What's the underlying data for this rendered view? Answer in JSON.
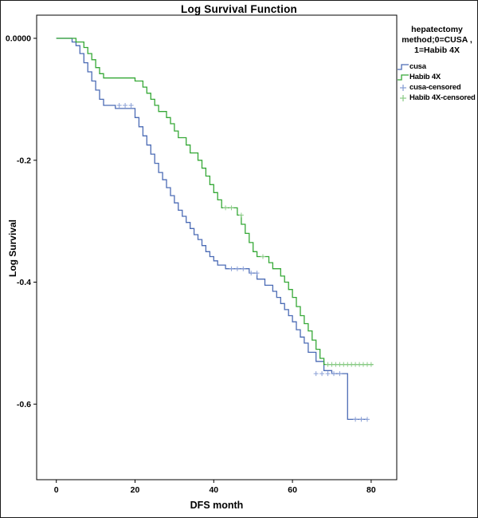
{
  "chart": {
    "title": "Log Survival Function",
    "xlabel": "DFS month",
    "ylabel": "Log Survival"
  },
  "legend": {
    "title_line1": "hepatectomy",
    "title_line2": "method;0=CUSA ,",
    "title_line3": "1=Habib 4X",
    "entries": [
      {
        "label": "cusa",
        "type": "line",
        "color": "#4b6bb5"
      },
      {
        "label": "Habib 4X",
        "type": "line",
        "color": "#35a836"
      },
      {
        "label": "cusa-censored",
        "type": "plus",
        "color": "#8aa0d6"
      },
      {
        "label": "Habib 4X-censored",
        "type": "plus",
        "color": "#8fcd8a"
      }
    ]
  },
  "chart_data": {
    "type": "line",
    "step": true,
    "title": "Log Survival Function",
    "xlabel": "DFS month",
    "ylabel": "Log Survival",
    "xlim": [
      -5,
      86.5
    ],
    "ylim": [
      -0.724,
      0.038
    ],
    "grid": false,
    "legend_position": "right-top-outside",
    "x_ticks": [
      0,
      20,
      40,
      60,
      80
    ],
    "y_ticks": [
      {
        "label": "0.0000",
        "value": 0
      },
      {
        "label": "-0.2",
        "value": -0.2
      },
      {
        "label": "-0.4",
        "value": -0.4
      },
      {
        "label": "-0.6",
        "value": -0.6
      }
    ],
    "series": [
      {
        "name": "cusa",
        "color": "#4b6bb5",
        "points": [
          [
            0,
            0
          ],
          [
            4,
            -0.006
          ],
          [
            5,
            -0.012
          ],
          [
            6,
            -0.025
          ],
          [
            7,
            -0.04
          ],
          [
            8,
            -0.055
          ],
          [
            9,
            -0.07
          ],
          [
            10,
            -0.085
          ],
          [
            11,
            -0.1
          ],
          [
            12,
            -0.11
          ],
          [
            15,
            -0.115
          ],
          [
            20,
            -0.13
          ],
          [
            21,
            -0.145
          ],
          [
            22,
            -0.16
          ],
          [
            23,
            -0.175
          ],
          [
            24,
            -0.19
          ],
          [
            25,
            -0.205
          ],
          [
            26,
            -0.22
          ],
          [
            27,
            -0.232
          ],
          [
            28,
            -0.245
          ],
          [
            29,
            -0.258
          ],
          [
            30,
            -0.27
          ],
          [
            31,
            -0.282
          ],
          [
            32,
            -0.292
          ],
          [
            33,
            -0.302
          ],
          [
            34,
            -0.312
          ],
          [
            35,
            -0.322
          ],
          [
            36,
            -0.33
          ],
          [
            37,
            -0.34
          ],
          [
            38,
            -0.35
          ],
          [
            39,
            -0.358
          ],
          [
            40,
            -0.365
          ],
          [
            41,
            -0.372
          ],
          [
            43,
            -0.378
          ],
          [
            49,
            -0.385
          ],
          [
            51,
            -0.395
          ],
          [
            53,
            -0.405
          ],
          [
            55,
            -0.415
          ],
          [
            56,
            -0.425
          ],
          [
            57,
            -0.435
          ],
          [
            58,
            -0.445
          ],
          [
            59,
            -0.455
          ],
          [
            60,
            -0.465
          ],
          [
            61,
            -0.478
          ],
          [
            62,
            -0.49
          ],
          [
            63,
            -0.5
          ],
          [
            64,
            -0.515
          ],
          [
            66,
            -0.53
          ],
          [
            68,
            -0.545
          ],
          [
            70,
            -0.55
          ],
          [
            74,
            -0.625
          ],
          [
            79,
            -0.625
          ]
        ]
      },
      {
        "name": "Habib 4X",
        "color": "#35a836",
        "points": [
          [
            0,
            0
          ],
          [
            5,
            -0.006
          ],
          [
            7,
            -0.015
          ],
          [
            8,
            -0.025
          ],
          [
            9,
            -0.035
          ],
          [
            10,
            -0.048
          ],
          [
            11,
            -0.058
          ],
          [
            12,
            -0.065
          ],
          [
            20,
            -0.07
          ],
          [
            22,
            -0.08
          ],
          [
            23,
            -0.09
          ],
          [
            24,
            -0.1
          ],
          [
            25,
            -0.11
          ],
          [
            26,
            -0.12
          ],
          [
            28,
            -0.13
          ],
          [
            29,
            -0.14
          ],
          [
            30,
            -0.152
          ],
          [
            31,
            -0.163
          ],
          [
            33,
            -0.175
          ],
          [
            34,
            -0.188
          ],
          [
            36,
            -0.2
          ],
          [
            37,
            -0.213
          ],
          [
            38,
            -0.226
          ],
          [
            39,
            -0.24
          ],
          [
            40,
            -0.253
          ],
          [
            41,
            -0.265
          ],
          [
            42,
            -0.278
          ],
          [
            46,
            -0.29
          ],
          [
            47,
            -0.305
          ],
          [
            48,
            -0.32
          ],
          [
            49,
            -0.335
          ],
          [
            50,
            -0.35
          ],
          [
            51,
            -0.358
          ],
          [
            54,
            -0.368
          ],
          [
            55,
            -0.378
          ],
          [
            57,
            -0.39
          ],
          [
            58,
            -0.4
          ],
          [
            59,
            -0.412
          ],
          [
            60,
            -0.425
          ],
          [
            61,
            -0.44
          ],
          [
            62,
            -0.455
          ],
          [
            63,
            -0.468
          ],
          [
            64,
            -0.48
          ],
          [
            65,
            -0.495
          ],
          [
            66,
            -0.51
          ],
          [
            67,
            -0.525
          ],
          [
            68,
            -0.535
          ],
          [
            80.5,
            -0.535
          ]
        ]
      }
    ],
    "censored": [
      {
        "name": "cusa-censored",
        "color": "#8aa0d6",
        "points": [
          [
            16,
            -0.11
          ],
          [
            17.5,
            -0.11
          ],
          [
            19,
            -0.11
          ],
          [
            44.5,
            -0.378
          ],
          [
            46,
            -0.378
          ],
          [
            47.5,
            -0.378
          ],
          [
            49.5,
            -0.385
          ],
          [
            51,
            -0.385
          ],
          [
            66,
            -0.55
          ],
          [
            67.5,
            -0.55
          ],
          [
            69,
            -0.55
          ],
          [
            70.5,
            -0.55
          ],
          [
            72,
            -0.55
          ],
          [
            76,
            -0.625
          ],
          [
            77.5,
            -0.625
          ],
          [
            79,
            -0.625
          ]
        ]
      },
      {
        "name": "Habib 4X-censored",
        "color": "#8fcd8a",
        "points": [
          [
            43,
            -0.278
          ],
          [
            44.5,
            -0.278
          ],
          [
            47,
            -0.29
          ],
          [
            52.5,
            -0.358
          ],
          [
            69,
            -0.535
          ],
          [
            70,
            -0.535
          ],
          [
            71,
            -0.535
          ],
          [
            72,
            -0.535
          ],
          [
            73,
            -0.535
          ],
          [
            74,
            -0.535
          ],
          [
            75,
            -0.535
          ],
          [
            76,
            -0.535
          ],
          [
            77,
            -0.535
          ],
          [
            78,
            -0.535
          ],
          [
            79,
            -0.535
          ],
          [
            80,
            -0.535
          ]
        ]
      }
    ]
  }
}
